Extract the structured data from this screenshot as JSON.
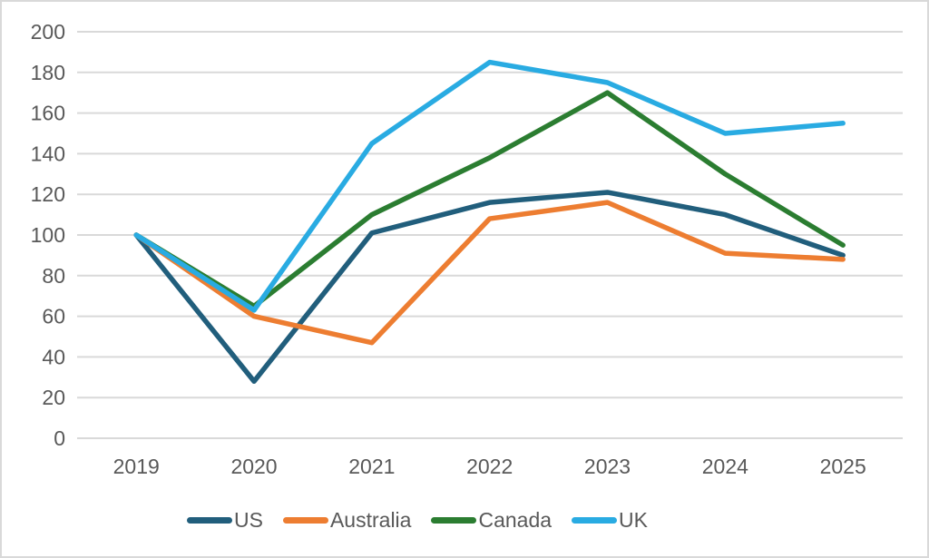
{
  "chart_data": {
    "type": "line",
    "title": "",
    "xlabel": "",
    "ylabel": "",
    "x": [
      "2019",
      "2020",
      "2021",
      "2022",
      "2023",
      "2024",
      "2025"
    ],
    "yticks": [
      0,
      20,
      40,
      60,
      80,
      100,
      120,
      140,
      160,
      180,
      200
    ],
    "ylim": [
      0,
      200
    ],
    "grid": true,
    "legend_position": "bottom",
    "series": [
      {
        "name": "US",
        "color": "#215E7C",
        "values": [
          100,
          28,
          101,
          116,
          121,
          110,
          90
        ]
      },
      {
        "name": "Australia",
        "color": "#ED7D31",
        "values": [
          100,
          60,
          47,
          108,
          116,
          91,
          88
        ]
      },
      {
        "name": "Canada",
        "color": "#2B7D31",
        "values": [
          100,
          65,
          110,
          138,
          170,
          130,
          95
        ]
      },
      {
        "name": "UK",
        "color": "#29ABE2",
        "values": [
          100,
          63,
          145,
          185,
          175,
          150,
          155
        ]
      }
    ]
  },
  "colors": {
    "background": "#FFFFFF",
    "border": "#D9D9D9",
    "gridline": "#D9D9D9",
    "axis_label": "#595959"
  }
}
